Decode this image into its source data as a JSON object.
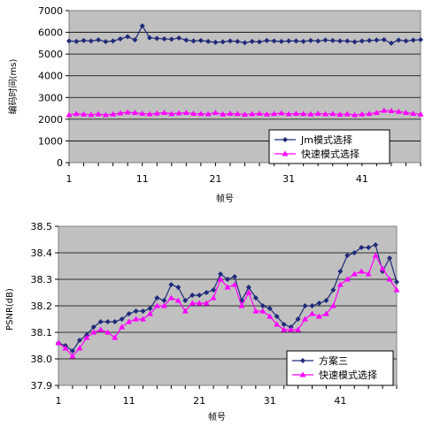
{
  "chart_data": [
    {
      "type": "line",
      "title": "",
      "xlabel": "帧号",
      "ylabel": "编码时间(ms)",
      "ylim": [
        0,
        7000
      ],
      "yticks": [
        0,
        1000,
        2000,
        3000,
        4000,
        5000,
        6000,
        7000
      ],
      "xlim": [
        1,
        49
      ],
      "xticks": [
        1,
        11,
        21,
        31,
        41
      ],
      "grid": true,
      "legend_position": "bottom-right",
      "series": [
        {
          "name": "Jm模式选择",
          "color": "#1f2a7a",
          "marker": "diamond",
          "x": [
            1,
            2,
            3,
            4,
            5,
            6,
            7,
            8,
            9,
            10,
            11,
            12,
            13,
            14,
            15,
            16,
            17,
            18,
            19,
            20,
            21,
            22,
            23,
            24,
            25,
            26,
            27,
            28,
            29,
            30,
            31,
            32,
            33,
            34,
            35,
            36,
            37,
            38,
            39,
            40,
            41,
            42,
            43,
            44,
            45,
            46,
            47,
            48,
            49
          ],
          "values": [
            5600,
            5580,
            5620,
            5600,
            5650,
            5570,
            5600,
            5700,
            5800,
            5650,
            6300,
            5750,
            5720,
            5700,
            5680,
            5740,
            5640,
            5600,
            5620,
            5580,
            5540,
            5560,
            5600,
            5580,
            5520,
            5580,
            5560,
            5620,
            5600,
            5580,
            5600,
            5600,
            5580,
            5620,
            5600,
            5640,
            5620,
            5600,
            5600,
            5560,
            5600,
            5620,
            5640,
            5660,
            5500,
            5640,
            5600,
            5640,
            5660
          ]
        },
        {
          "name": "快速模式选择",
          "color": "#ff00ff",
          "marker": "triangle",
          "x": [
            1,
            2,
            3,
            4,
            5,
            6,
            7,
            8,
            9,
            10,
            11,
            12,
            13,
            14,
            15,
            16,
            17,
            18,
            19,
            20,
            21,
            22,
            23,
            24,
            25,
            26,
            27,
            28,
            29,
            30,
            31,
            32,
            33,
            34,
            35,
            36,
            37,
            38,
            39,
            40,
            41,
            42,
            43,
            44,
            45,
            46,
            47,
            48,
            49
          ],
          "values": [
            2200,
            2250,
            2230,
            2210,
            2240,
            2200,
            2230,
            2280,
            2320,
            2300,
            2260,
            2240,
            2270,
            2300,
            2250,
            2280,
            2300,
            2260,
            2250,
            2240,
            2300,
            2230,
            2260,
            2250,
            2220,
            2240,
            2260,
            2230,
            2250,
            2280,
            2240,
            2260,
            2250,
            2230,
            2260,
            2240,
            2250,
            2220,
            2240,
            2200,
            2230,
            2250,
            2300,
            2400,
            2380,
            2350,
            2300,
            2260,
            2230
          ]
        }
      ]
    },
    {
      "type": "line",
      "title": "",
      "xlabel": "帧号",
      "ylabel": "PSNR(dB)",
      "ylim": [
        37.9,
        38.5
      ],
      "yticks": [
        37.9,
        38.0,
        38.1,
        38.2,
        38.3,
        38.4,
        38.5
      ],
      "xlim": [
        1,
        49
      ],
      "xticks": [
        1,
        11,
        21,
        31,
        41
      ],
      "grid": true,
      "legend_position": "bottom-right",
      "series": [
        {
          "name": "方案三",
          "color": "#1f2a7a",
          "marker": "diamond",
          "x": [
            1,
            2,
            3,
            4,
            5,
            6,
            7,
            8,
            9,
            10,
            11,
            12,
            13,
            14,
            15,
            16,
            17,
            18,
            19,
            20,
            21,
            22,
            23,
            24,
            25,
            26,
            27,
            28,
            29,
            30,
            31,
            32,
            33,
            34,
            35,
            36,
            37,
            38,
            39,
            40,
            41,
            42,
            43,
            44,
            45,
            46,
            47,
            48,
            49
          ],
          "values": [
            38.06,
            38.05,
            38.03,
            38.07,
            38.09,
            38.12,
            38.14,
            38.14,
            38.14,
            38.15,
            38.17,
            38.18,
            38.18,
            38.19,
            38.23,
            38.22,
            38.28,
            38.27,
            38.22,
            38.24,
            38.24,
            38.25,
            38.26,
            38.32,
            38.3,
            38.31,
            38.22,
            38.27,
            38.23,
            38.2,
            38.19,
            38.16,
            38.13,
            38.12,
            38.15,
            38.2,
            38.2,
            38.21,
            38.22,
            38.26,
            38.33,
            38.39,
            38.4,
            38.42,
            38.42,
            38.43,
            38.33,
            38.38,
            38.29
          ]
        },
        {
          "name": "快速模式选择",
          "color": "#ff00ff",
          "marker": "triangle",
          "x": [
            1,
            2,
            3,
            4,
            5,
            6,
            7,
            8,
            9,
            10,
            11,
            12,
            13,
            14,
            15,
            16,
            17,
            18,
            19,
            20,
            21,
            22,
            23,
            24,
            25,
            26,
            27,
            28,
            29,
            30,
            31,
            32,
            33,
            34,
            35,
            36,
            37,
            38,
            39,
            40,
            41,
            42,
            43,
            44,
            45,
            46,
            47,
            48,
            49
          ],
          "values": [
            38.06,
            38.04,
            38.01,
            38.04,
            38.08,
            38.1,
            38.11,
            38.1,
            38.08,
            38.12,
            38.14,
            38.15,
            38.15,
            38.17,
            38.2,
            38.2,
            38.23,
            38.22,
            38.18,
            38.21,
            38.21,
            38.21,
            38.23,
            38.3,
            38.27,
            38.28,
            38.2,
            38.25,
            38.18,
            38.18,
            38.16,
            38.13,
            38.11,
            38.11,
            38.11,
            38.15,
            38.17,
            38.16,
            38.17,
            38.2,
            38.28,
            38.3,
            38.32,
            38.33,
            38.32,
            38.39,
            38.34,
            38.3,
            38.26
          ]
        }
      ]
    }
  ]
}
